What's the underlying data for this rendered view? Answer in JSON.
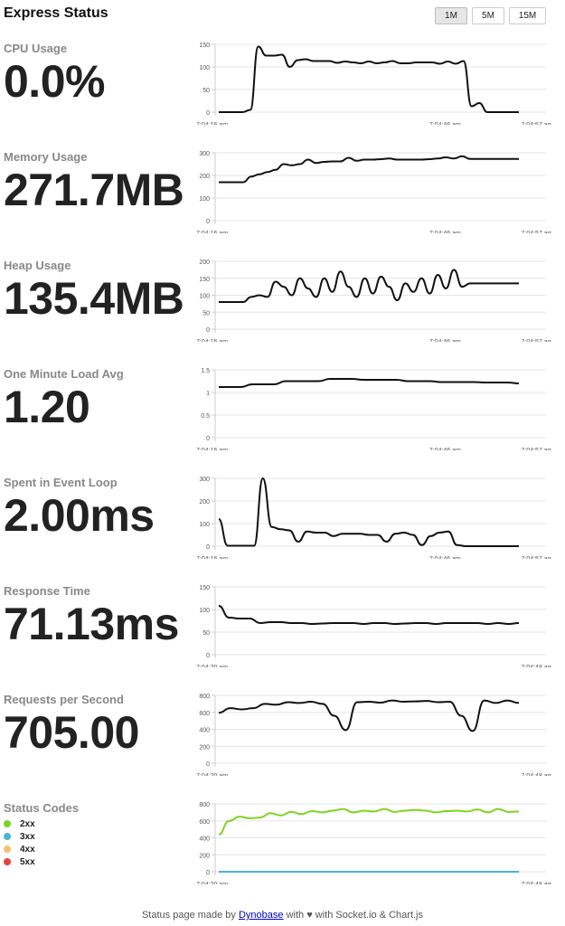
{
  "header": {
    "title": "Express Status",
    "spans": [
      {
        "label": "1M",
        "active": true
      },
      {
        "label": "5M",
        "active": false
      },
      {
        "label": "15M",
        "active": false
      }
    ]
  },
  "metrics": [
    {
      "label": "CPU Usage",
      "value": "0.0%"
    },
    {
      "label": "Memory Usage",
      "value": "271.7MB"
    },
    {
      "label": "Heap Usage",
      "value": "135.4MB"
    },
    {
      "label": "One Minute Load Avg",
      "value": "1.20"
    },
    {
      "label": "Spent in Event Loop",
      "value": "2.00ms"
    },
    {
      "label": "Response Time",
      "value": "71.13ms"
    },
    {
      "label": "Requests per Second",
      "value": "705.00"
    }
  ],
  "status_codes": {
    "label": "Status Codes",
    "legend": [
      {
        "label": "2xx",
        "color": "#7ed321"
      },
      {
        "label": "3xx",
        "color": "#4ab3d6"
      },
      {
        "label": "4xx",
        "color": "#f5c26b"
      },
      {
        "label": "5xx",
        "color": "#e8403d"
      }
    ]
  },
  "footer": {
    "prefix": "Status page made by ",
    "link": "Dynobase",
    "middle": " with ♥ with Socket.io & Chart.js"
  },
  "colors": {
    "line": "#111111",
    "grid": "#e6e6e6",
    "ok": "#7ed321",
    "redirect": "#4ab3d6"
  },
  "chart_data": [
    {
      "type": "line",
      "ylim": [
        0,
        150
      ],
      "yticks": [
        0,
        50,
        100,
        150
      ],
      "xticks": [
        "7:04:16 am",
        "7:04:46 am",
        "7:04:57 am"
      ],
      "series": [
        {
          "values": [
            0,
            0,
            0,
            0,
            5,
            145,
            125,
            125,
            127,
            100,
            115,
            117,
            113,
            113,
            113,
            109,
            112,
            110,
            108,
            112,
            108,
            110,
            113,
            108,
            108,
            110,
            110,
            110,
            107,
            112,
            107,
            113,
            13,
            20,
            0,
            0,
            0,
            0,
            0
          ]
        }
      ]
    },
    {
      "type": "line",
      "ylim": [
        0,
        300
      ],
      "yticks": [
        0,
        100,
        200,
        300
      ],
      "xticks": [
        "7:04:16 am",
        "7:04:46 am",
        "7:04:57 am"
      ],
      "series": [
        {
          "values": [
            170,
            170,
            170,
            170,
            195,
            205,
            215,
            225,
            250,
            245,
            250,
            270,
            255,
            260,
            262,
            262,
            278,
            265,
            270,
            270,
            272,
            275,
            270,
            270,
            270,
            270,
            272,
            275,
            280,
            275,
            285,
            273,
            273,
            273,
            273,
            273,
            273,
            273
          ]
        }
      ]
    },
    {
      "type": "line",
      "ylim": [
        0,
        200
      ],
      "yticks": [
        0,
        50,
        100,
        150,
        200
      ],
      "xticks": [
        "7:04:16 am",
        "7:04:46 am",
        "7:04:57 am"
      ],
      "series": [
        {
          "values": [
            80,
            80,
            80,
            80,
            95,
            100,
            95,
            140,
            125,
            100,
            150,
            120,
            95,
            150,
            110,
            170,
            125,
            95,
            150,
            105,
            155,
            125,
            85,
            135,
            110,
            150,
            105,
            160,
            120,
            175,
            125,
            135,
            135,
            135,
            135,
            135,
            135,
            135
          ]
        }
      ]
    },
    {
      "type": "line",
      "ylim": [
        0,
        1.5
      ],
      "yticks": [
        0,
        0.5,
        1.0,
        1.5
      ],
      "xticks": [
        "7:04:16 am",
        "7:04:46 am",
        "7:04:57 am"
      ],
      "series": [
        {
          "values": [
            1.12,
            1.12,
            1.12,
            1.18,
            1.18,
            1.18,
            1.25,
            1.25,
            1.25,
            1.25,
            1.3,
            1.3,
            1.3,
            1.28,
            1.28,
            1.28,
            1.28,
            1.25,
            1.25,
            1.25,
            1.23,
            1.23,
            1.23,
            1.23,
            1.22,
            1.22,
            1.22,
            1.2
          ]
        }
      ]
    },
    {
      "type": "line",
      "ylim": [
        0,
        300
      ],
      "yticks": [
        0,
        100,
        200,
        300
      ],
      "xticks": [
        "7:04:16 am",
        "7:04:46 am",
        "7:04:57 am"
      ],
      "series": [
        {
          "values": [
            120,
            2,
            2,
            2,
            2,
            300,
            85,
            75,
            70,
            20,
            65,
            60,
            60,
            45,
            55,
            55,
            55,
            50,
            50,
            20,
            55,
            60,
            50,
            5,
            45,
            60,
            65,
            5,
            0,
            0,
            0,
            0,
            0,
            0,
            0
          ]
        }
      ]
    },
    {
      "type": "line",
      "ylim": [
        0,
        150
      ],
      "yticks": [
        0,
        50,
        100,
        150
      ],
      "xticks": [
        "7:04:20 am",
        "7:04:48 am"
      ],
      "series": [
        {
          "values": [
            108,
            82,
            80,
            80,
            70,
            72,
            72,
            70,
            70,
            68,
            69,
            70,
            70,
            70,
            68,
            70,
            70,
            68,
            69,
            70,
            70,
            68,
            70,
            70,
            70,
            70,
            68,
            70,
            68,
            70
          ]
        }
      ]
    },
    {
      "type": "line",
      "ylim": [
        0,
        800
      ],
      "yticks": [
        0,
        200,
        400,
        600,
        800
      ],
      "xticks": [
        "7:04:20 am",
        "7:04:48 am"
      ],
      "series": [
        {
          "values": [
            595,
            650,
            635,
            650,
            700,
            690,
            720,
            710,
            725,
            700,
            560,
            390,
            720,
            725,
            715,
            740,
            725,
            730,
            735,
            720,
            725,
            560,
            380,
            740,
            710,
            740,
            710
          ]
        }
      ]
    },
    {
      "type": "line",
      "ylim": [
        0,
        800
      ],
      "yticks": [
        0,
        200,
        400,
        600,
        800
      ],
      "xticks": [
        "7:04:20 am",
        "7:04:48 am"
      ],
      "series": [
        {
          "name": "2xx",
          "values": [
            440,
            600,
            650,
            630,
            640,
            690,
            665,
            705,
            680,
            715,
            700,
            720,
            740,
            700,
            720,
            710,
            740,
            705,
            720,
            730,
            720,
            700,
            715,
            720,
            710,
            735,
            700,
            740,
            705,
            710
          ]
        },
        {
          "name": "3xx",
          "values": [
            0,
            0,
            0,
            0,
            0,
            0,
            0,
            0,
            0,
            0,
            0,
            0,
            0,
            0,
            0,
            0,
            0,
            0,
            0,
            0,
            0,
            0,
            0,
            0,
            0,
            0,
            0,
            0,
            0,
            0
          ]
        }
      ]
    }
  ]
}
